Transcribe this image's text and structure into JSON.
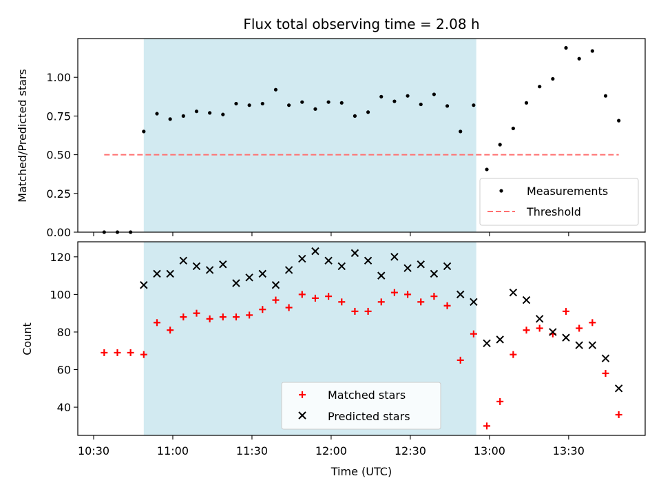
{
  "title": "Flux total observing time = 2.08 h",
  "colors": {
    "shade": "#add8e6",
    "measurement": "#000000",
    "threshold": "#ff7070",
    "matched": "#ff0000",
    "predicted": "#000000"
  },
  "chart_data": [
    {
      "type": "scatter",
      "ylabel": "Matched/Predicted stars",
      "xlabel": "",
      "xlim": [
        "10:24",
        "13:59"
      ],
      "ylim": [
        0,
        1.25
      ],
      "yticks": [
        0.0,
        0.25,
        0.5,
        0.75,
        1.0
      ],
      "ytick_labels": [
        "0.00",
        "0.25",
        "0.50",
        "0.75",
        "1.00"
      ],
      "shaded_span": [
        "10:49",
        "12:55"
      ],
      "legend_position": "lower right",
      "series": [
        {
          "name": "Measurements",
          "marker": "dot",
          "x": [
            "10:34",
            "10:39",
            "10:44",
            "10:49",
            "10:54",
            "10:59",
            "11:04",
            "11:09",
            "11:14",
            "11:19",
            "11:24",
            "11:29",
            "11:34",
            "11:39",
            "11:44",
            "11:49",
            "11:54",
            "11:59",
            "12:04",
            "12:09",
            "12:14",
            "12:19",
            "12:24",
            "12:29",
            "12:34",
            "12:39",
            "12:44",
            "12:49",
            "12:54",
            "12:59",
            "13:04",
            "13:09",
            "13:14",
            "13:19",
            "13:24",
            "13:29",
            "13:34",
            "13:39",
            "13:44",
            "13:49"
          ],
          "y": [
            0,
            0,
            0,
            0.65,
            0.765,
            0.73,
            0.75,
            0.78,
            0.77,
            0.76,
            0.83,
            0.82,
            0.83,
            0.92,
            0.82,
            0.84,
            0.795,
            0.84,
            0.835,
            0.75,
            0.775,
            0.875,
            0.845,
            0.88,
            0.825,
            0.89,
            0.815,
            0.65,
            0.82,
            0.405,
            0.565,
            0.67,
            0.835,
            0.94,
            0.99,
            1.19,
            1.12,
            1.17,
            0.88,
            0.72
          ]
        },
        {
          "name": "Threshold",
          "marker": "dashed-line",
          "x": [
            "10:34",
            "13:49"
          ],
          "y": [
            0.5,
            0.5
          ]
        }
      ]
    },
    {
      "type": "scatter",
      "ylabel": "Count",
      "xlabel": "Time (UTC)",
      "xlim": [
        "10:24",
        "13:59"
      ],
      "ylim": [
        25,
        128
      ],
      "yticks": [
        40,
        60,
        80,
        100,
        120
      ],
      "ytick_labels": [
        "40",
        "60",
        "80",
        "100",
        "120"
      ],
      "xticks": [
        "10:30",
        "11:00",
        "11:30",
        "12:00",
        "12:30",
        "13:00",
        "13:30"
      ],
      "xtick_labels": [
        "10:30",
        "11:00",
        "11:30",
        "12:00",
        "12:30",
        "13:00",
        "13:30"
      ],
      "shaded_span": [
        "10:49",
        "12:55"
      ],
      "legend_position": "lower center",
      "series": [
        {
          "name": "Matched stars",
          "marker": "plus",
          "x": [
            "10:34",
            "10:39",
            "10:44",
            "10:49",
            "10:54",
            "10:59",
            "11:04",
            "11:09",
            "11:14",
            "11:19",
            "11:24",
            "11:29",
            "11:34",
            "11:39",
            "11:44",
            "11:49",
            "11:54",
            "11:59",
            "12:04",
            "12:09",
            "12:14",
            "12:19",
            "12:24",
            "12:29",
            "12:34",
            "12:39",
            "12:44",
            "12:49",
            "12:54",
            "12:59",
            "13:04",
            "13:09",
            "13:14",
            "13:19",
            "13:24",
            "13:29",
            "13:34",
            "13:39",
            "13:44",
            "13:49"
          ],
          "y": [
            69,
            69,
            69,
            68,
            85,
            81,
            88,
            90,
            87,
            88,
            88,
            89,
            92,
            97,
            93,
            100,
            98,
            99,
            96,
            91,
            91,
            96,
            101,
            100,
            96,
            99,
            94,
            65,
            79,
            30,
            43,
            68,
            81,
            82,
            79,
            91,
            82,
            85,
            58,
            36
          ]
        },
        {
          "name": "Predicted stars",
          "marker": "x",
          "x": [
            "10:49",
            "10:54",
            "10:59",
            "11:04",
            "11:09",
            "11:14",
            "11:19",
            "11:24",
            "11:29",
            "11:34",
            "11:39",
            "11:44",
            "11:49",
            "11:54",
            "11:59",
            "12:04",
            "12:09",
            "12:14",
            "12:19",
            "12:24",
            "12:29",
            "12:34",
            "12:39",
            "12:44",
            "12:49",
            "12:54",
            "12:59",
            "13:04",
            "13:09",
            "13:14",
            "13:19",
            "13:24",
            "13:29",
            "13:34",
            "13:39",
            "13:44",
            "13:49"
          ],
          "y": [
            105,
            111,
            111,
            118,
            115,
            113,
            116,
            106,
            109,
            111,
            105,
            113,
            119,
            123,
            118,
            115,
            122,
            118,
            110,
            120,
            114,
            116,
            111,
            115,
            100,
            96,
            74,
            76,
            101,
            97,
            87,
            80,
            77,
            73,
            73,
            66,
            50
          ]
        }
      ]
    }
  ]
}
